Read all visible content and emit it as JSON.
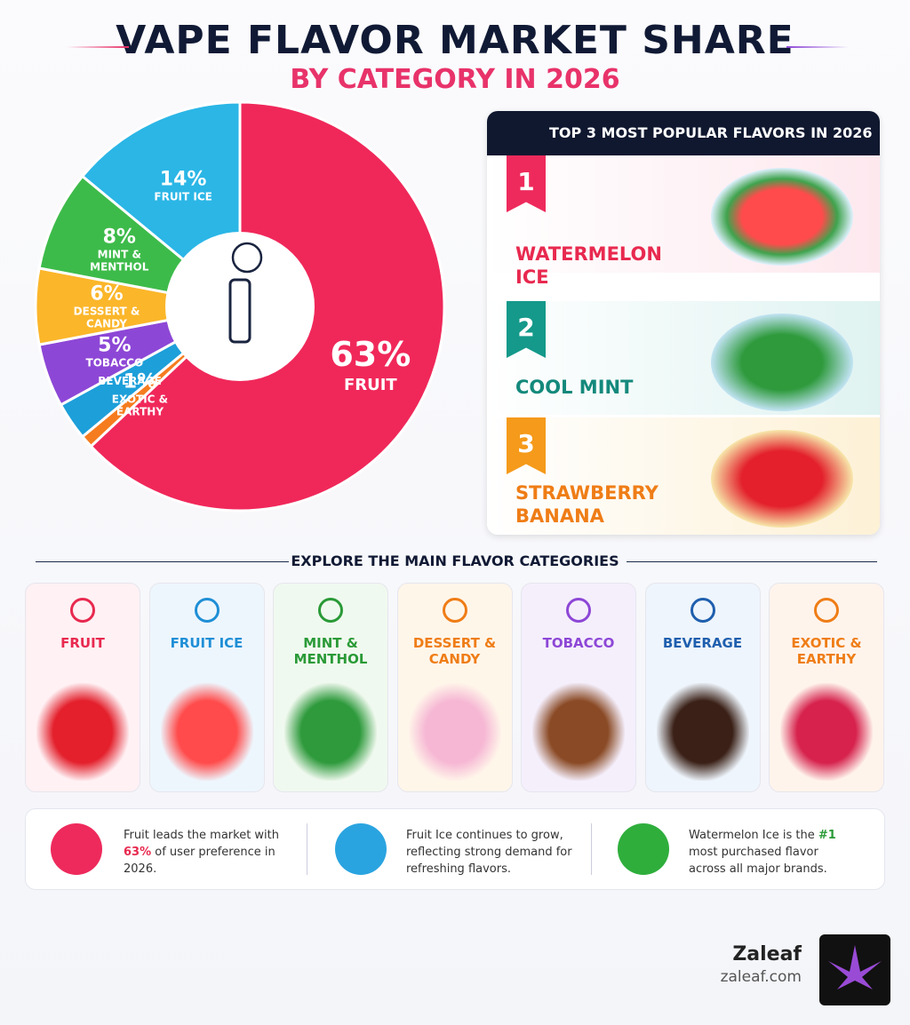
{
  "header": {
    "title": "VAPE FLAVOR MARKET SHARE",
    "subtitle": "BY CATEGORY IN 2026"
  },
  "chart_data": {
    "type": "pie",
    "categories": [
      "FRUIT",
      "FRUIT ICE",
      "MINT & MENTHOL",
      "DESSERT & CANDY",
      "TOBACCO",
      "BEVERAGE",
      "EXOTIC & EARTHY"
    ],
    "values": [
      63,
      14,
      8,
      6,
      5,
      3,
      1
    ],
    "value_labels": [
      "63%",
      "14%",
      "8%",
      "6%",
      "5%",
      null,
      "1%"
    ],
    "colors": [
      "#f0285a",
      "#2bb6e6",
      "#3dbb4a",
      "#fbb62a",
      "#8d47d6",
      "#1d9fd9",
      "#f57c1f"
    ]
  },
  "top3": {
    "title": "TOP 3 MOST POPULAR FLAVORS IN 2026",
    "items": [
      {
        "rank": 1,
        "name": "WATERMELON ICE"
      },
      {
        "rank": 2,
        "name": "COOL MINT"
      },
      {
        "rank": 3,
        "name": "STRAWBERRY BANANA"
      }
    ]
  },
  "explore": {
    "title": "EXPLORE THE MAIN FLAVOR CATEGORIES",
    "cards": [
      "FRUIT",
      "FRUIT ICE",
      "MINT & MENTHOL",
      "DESSERT & CANDY",
      "TOBACCO",
      "BEVERAGE",
      "EXOTIC & EARTHY"
    ]
  },
  "facts": [
    {
      "before": "Fruit leads the market with",
      "highlight": "63%",
      "after": "of user preference in 2026."
    },
    {
      "text": "Fruit Ice continues to grow, reflecting strong demand for refreshing flavors."
    },
    {
      "before": "Watermelon Ice is the",
      "highlight": "#1",
      "after": "most purchased flavor across all major brands."
    }
  ],
  "brand": {
    "name": "Zaleaf",
    "url": "zaleaf.com"
  }
}
